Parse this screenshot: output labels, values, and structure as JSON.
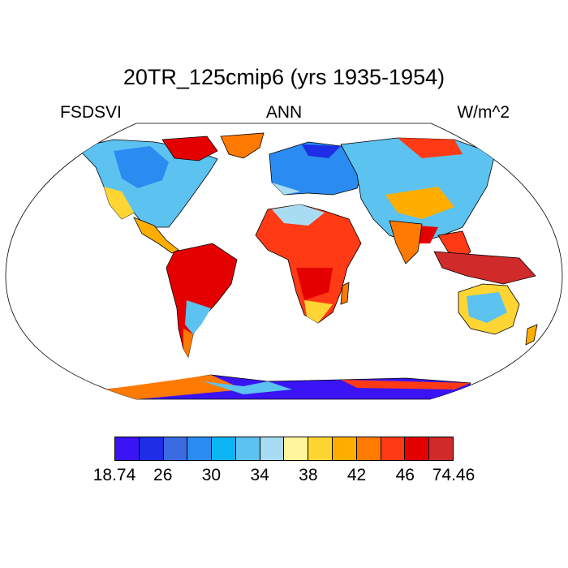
{
  "title": "20TR_125cmip6 (yrs 1935-1954)",
  "left_label": "FSDSVI",
  "center_label": "ANN",
  "right_label": "W/m^2",
  "colorbar": {
    "colors": [
      "#3b14f5",
      "#1d2ee6",
      "#3a6be0",
      "#2a8cf0",
      "#0cb4f4",
      "#5cc2f0",
      "#a8dcf2",
      "#fff59a",
      "#ffd533",
      "#ffae00",
      "#ff7a00",
      "#ff3a14",
      "#e50000",
      "#d02a2a"
    ],
    "tick_labels": [
      "18.74",
      "26",
      "30",
      "34",
      "38",
      "42",
      "46",
      "74.46"
    ]
  }
}
